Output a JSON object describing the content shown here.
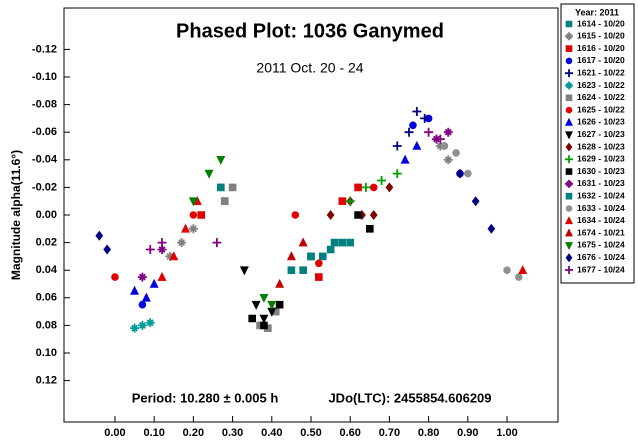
{
  "chart_data": {
    "type": "scatter",
    "title": "Phased Plot: 1036 Ganymed",
    "subtitle": "2011 Oct. 20 - 24",
    "y_label": "Magnitude alpha(11.6°)",
    "annotations": [
      "Period: 10.280 ± 0.005 h",
      "JDo(LTC): 2455854.606209"
    ],
    "legend_title": "Year: 2011",
    "legend": "right",
    "xlim": [
      -0.13,
      1.13
    ],
    "ylim": [
      -0.15,
      0.15
    ],
    "y_inverted": true,
    "xticks": [
      {
        "value": 0,
        "label": "0.00"
      },
      {
        "value": 0.1,
        "label": "0.10"
      },
      {
        "value": 0.2,
        "label": "0.20"
      },
      {
        "value": 0.3,
        "label": "0.30"
      },
      {
        "value": 0.4,
        "label": "0.40"
      },
      {
        "value": 0.5,
        "label": "0.50"
      },
      {
        "value": 0.6,
        "label": "0.60"
      },
      {
        "value": 0.7,
        "label": "0.70"
      },
      {
        "value": 0.8,
        "label": "0.80"
      },
      {
        "value": 0.9,
        "label": "0.90"
      },
      {
        "value": 1,
        "label": "1.00"
      }
    ],
    "yticks": [
      -0.12,
      {
        "value": -0.1,
        "label": "-0.10"
      },
      -0.08,
      -0.06,
      -0.04,
      -0.02,
      {
        "value": 0,
        "label": "0.00"
      },
      0.02,
      0.04,
      0.06,
      0.08,
      {
        "value": 0.1,
        "label": "0.10"
      },
      0.12
    ],
    "series": [
      {
        "name": "1614 - 10/20",
        "color": "#008080",
        "marker": "square",
        "x": [
          0.45,
          0.5,
          0.53,
          0.56,
          0.6
        ],
        "values": [
          0.04,
          0.03,
          0.03,
          0.02,
          0.02
        ]
      },
      {
        "name": "1615 - 10/20",
        "color": "#808080",
        "marker": "asterisk",
        "x": [
          0.14,
          0.17,
          0.2,
          0.83,
          0.85
        ],
        "values": [
          0.03,
          0.02,
          0.01,
          -0.05,
          -0.04
        ]
      },
      {
        "name": "1616 - 10/20",
        "color": "#e00000",
        "marker": "square",
        "x": [
          0.22,
          0.28,
          0.52,
          0.58,
          0.62
        ],
        "values": [
          0,
          -0.01,
          0.045,
          -0.01,
          -0.02
        ]
      },
      {
        "name": "1617 - 10/20",
        "color": "#0000e0",
        "marker": "circle",
        "x": [
          0.07,
          0.76,
          0.8,
          0.84,
          0.88
        ],
        "values": [
          0.065,
          -0.065,
          -0.07,
          -0.05,
          -0.03
        ]
      },
      {
        "name": "1621 - 10/22",
        "color": "#000080",
        "marker": "plus",
        "x": [
          0.72,
          0.75,
          0.77,
          0.79
        ],
        "values": [
          -0.05,
          -0.06,
          -0.075,
          -0.07
        ]
      },
      {
        "name": "1623 - 10/22",
        "color": "#009999",
        "marker": "asterisk",
        "x": [
          0.05,
          0.07,
          0.09
        ],
        "values": [
          0.082,
          0.08,
          0.078
        ]
      },
      {
        "name": "1624 - 10/22",
        "color": "#808080",
        "marker": "square",
        "x": [
          0.28,
          0.3,
          0.37,
          0.39,
          0.41
        ],
        "values": [
          -0.01,
          -0.02,
          0.08,
          0.082,
          0.07
        ]
      },
      {
        "name": "1625 - 10/22",
        "color": "#e00000",
        "marker": "circle",
        "x": [
          0,
          0.2,
          0.46,
          0.52,
          0.66
        ],
        "values": [
          0.045,
          0,
          0,
          0.035,
          -0.02
        ]
      },
      {
        "name": "1626 - 10/23",
        "color": "#0000e0",
        "marker": "triangle",
        "x": [
          0.05,
          0.08,
          0.1,
          0.74,
          0.77
        ],
        "values": [
          0.055,
          0.06,
          0.05,
          -0.04,
          -0.05
        ]
      },
      {
        "name": "1627 - 10/23",
        "color": "#000000",
        "marker": "triangle-down",
        "x": [
          0.33,
          0.36,
          0.38,
          0.4
        ],
        "values": [
          0.04,
          0.065,
          0.075,
          0.07
        ]
      },
      {
        "name": "1628 - 10/23",
        "color": "#800000",
        "marker": "diamond",
        "x": [
          0.55,
          0.6,
          0.63,
          0.66,
          0.7
        ],
        "values": [
          0,
          -0.01,
          0,
          0,
          -0.02
        ]
      },
      {
        "name": "1629 - 10/23",
        "color": "#00a000",
        "marker": "plus",
        "x": [
          0.6,
          0.64,
          0.68,
          0.72
        ],
        "values": [
          -0.01,
          -0.02,
          -0.025,
          -0.03
        ]
      },
      {
        "name": "1630 - 10/23",
        "color": "#000000",
        "marker": "square",
        "x": [
          0.35,
          0.38,
          0.42,
          0.62,
          0.65
        ],
        "values": [
          0.075,
          0.08,
          0.065,
          0,
          0.01
        ]
      },
      {
        "name": "1631 - 10/23",
        "color": "#800080",
        "marker": "asterisk",
        "x": [
          0.07,
          0.12,
          0.82,
          0.85
        ],
        "values": [
          0.045,
          0.025,
          -0.055,
          -0.06
        ]
      },
      {
        "name": "1632 - 10/24",
        "color": "#008080",
        "marker": "square",
        "x": [
          0.48,
          0.5,
          0.55,
          0.58,
          0.27
        ],
        "values": [
          0.04,
          0.03,
          0.025,
          0.02,
          -0.02
        ]
      },
      {
        "name": "1633 - 10/24",
        "color": "#909090",
        "marker": "circle",
        "x": [
          0.84,
          0.87,
          0.9,
          1,
          1.03
        ],
        "values": [
          -0.05,
          -0.045,
          -0.03,
          0.04,
          0.045
        ]
      },
      {
        "name": "1634 - 10/24",
        "color": "#e00000",
        "marker": "triangle",
        "x": [
          0.12,
          0.15,
          0.18,
          0.21,
          1.04
        ],
        "values": [
          0.045,
          0.03,
          0.01,
          -0.01,
          0.04
        ]
      },
      {
        "name": "1674 - 10/21",
        "color": "#c00000",
        "marker": "triangle",
        "x": [
          0.42,
          0.45,
          0.48
        ],
        "values": [
          0.05,
          0.03,
          0.02
        ]
      },
      {
        "name": "1675 - 10/24",
        "color": "#008000",
        "marker": "triangle-down",
        "x": [
          0.2,
          0.24,
          0.27,
          0.38,
          0.4
        ],
        "values": [
          -0.01,
          -0.03,
          -0.04,
          0.06,
          0.065
        ]
      },
      {
        "name": "1676 - 10/24",
        "color": "#000080",
        "marker": "diamond",
        "x": [
          -0.04,
          -0.02,
          0.88,
          0.92,
          0.96
        ],
        "values": [
          0.015,
          0.025,
          -0.03,
          -0.01,
          0.01
        ]
      },
      {
        "name": "1677 - 10/24",
        "color": "#800080",
        "marker": "plus",
        "x": [
          0.09,
          0.12,
          0.26,
          0.8,
          0.83
        ],
        "values": [
          0.025,
          0.02,
          0.02,
          -0.06,
          -0.055
        ]
      }
    ]
  }
}
